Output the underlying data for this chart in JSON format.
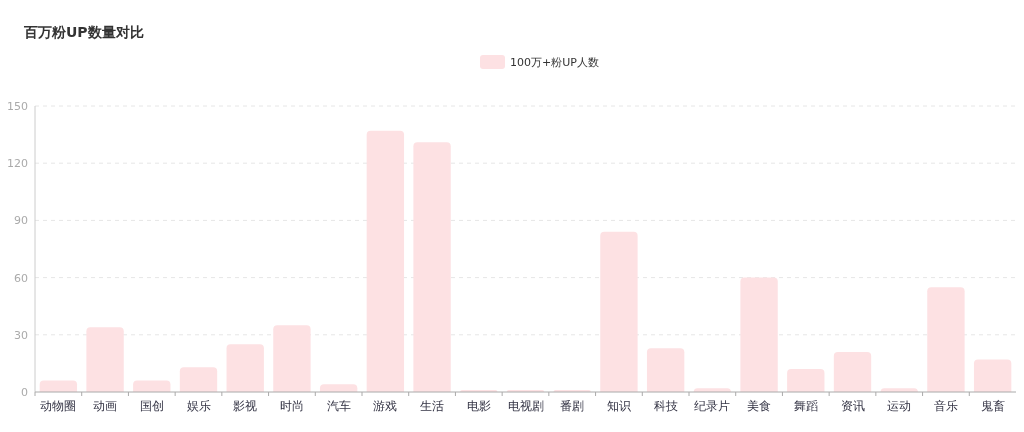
{
  "chart_data": {
    "type": "bar",
    "title": "百万粉UP数量对比",
    "categories": [
      "动物圈",
      "动画",
      "国创",
      "娱乐",
      "影视",
      "时尚",
      "汽车",
      "游戏",
      "生活",
      "电影",
      "电视剧",
      "番剧",
      "知识",
      "科技",
      "纪录片",
      "美食",
      "舞蹈",
      "资讯",
      "运动",
      "音乐",
      "鬼畜"
    ],
    "series": [
      {
        "name": "100万+粉UP人数",
        "color": "#fde1e3",
        "values": [
          6,
          34,
          6,
          13,
          25,
          35,
          4,
          137,
          131,
          1,
          1,
          1,
          84,
          23,
          2,
          60,
          12,
          21,
          2,
          55,
          17
        ]
      }
    ],
    "ylim": [
      0,
      150
    ],
    "yticks": [
      0,
      30,
      60,
      90,
      120,
      150
    ],
    "grid": "y",
    "legend": "top"
  }
}
